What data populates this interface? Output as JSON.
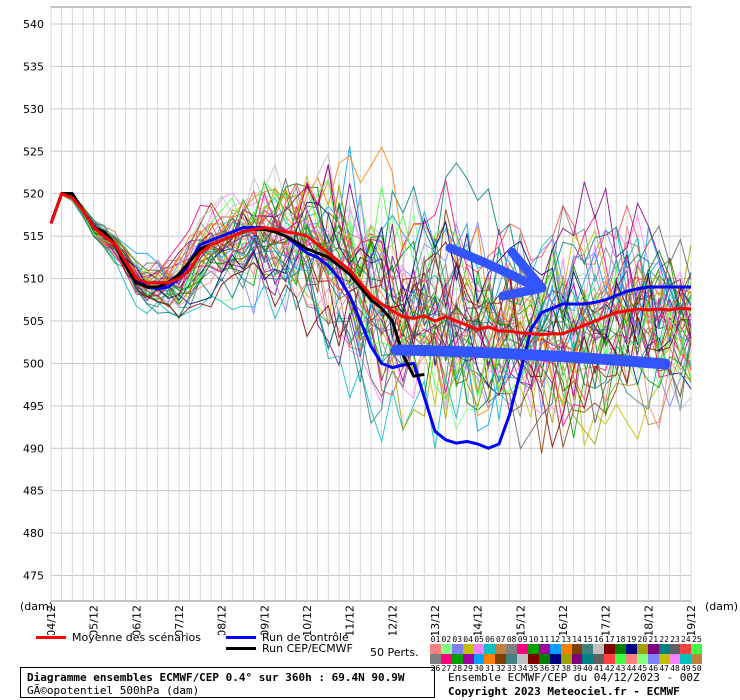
{
  "chart_data": {
    "type": "line",
    "ylabel_unit": "(dam)",
    "xlabel_unit": "(dam)",
    "ylim": [
      472,
      542
    ],
    "yticks": [
      475,
      480,
      485,
      490,
      495,
      500,
      505,
      510,
      515,
      520,
      525,
      530,
      535,
      540
    ],
    "xticks": [
      "04/12",
      "05/12",
      "06/12",
      "07/12",
      "08/12",
      "09/12",
      "10/12",
      "11/12",
      "12/12",
      "13/12",
      "14/12",
      "15/12",
      "16/12",
      "17/12",
      "18/12",
      "19/12"
    ],
    "grid": true,
    "x_hours_step": 6,
    "mean": {
      "name": "Moyenne des scénarios",
      "color": "#ff0000",
      "values": [
        516.5,
        520,
        519.5,
        518,
        516,
        515,
        514,
        512,
        510,
        509.5,
        509.5,
        509.5,
        510,
        511,
        513,
        514,
        514.5,
        515,
        515.5,
        515.8,
        516,
        515.8,
        515.5,
        515.3,
        515,
        514,
        513,
        512,
        511,
        509.5,
        508,
        507,
        506.2,
        505.5,
        505.3,
        505.6,
        505,
        505.5,
        505,
        504.5,
        504,
        504.3,
        503.8,
        503.8,
        503.6,
        503.5,
        503.4,
        503.5,
        503.5,
        504,
        504.5,
        505,
        505.5,
        506,
        506.2,
        506.4,
        506.3,
        506.4,
        506.3,
        506.5,
        506.4
      ]
    },
    "control": {
      "name": "Run de contrôle",
      "color": "#0000ff",
      "values": [
        516.5,
        520,
        520,
        518,
        516,
        515.5,
        514,
        512,
        510,
        509,
        508.8,
        509,
        510,
        512,
        514,
        514.5,
        515,
        515.5,
        516,
        516,
        516,
        515.5,
        515,
        514,
        513,
        512.5,
        511.5,
        510,
        508,
        505,
        502,
        500,
        499.5,
        499.8,
        500,
        496,
        492,
        491,
        490.6,
        490.8,
        490.5,
        490,
        490.5,
        494,
        499,
        504,
        506,
        506.5,
        507,
        507,
        507,
        507.2,
        507.5,
        508,
        508.5,
        508.8,
        509,
        509,
        509,
        509,
        509
      ]
    },
    "cep": {
      "name": "Run CEP/ECMWF",
      "color": "#000000",
      "values": [
        516.5,
        520,
        520,
        518,
        516,
        515.5,
        514,
        511.5,
        509.5,
        509,
        509,
        509.5,
        510.5,
        512,
        513.5,
        514,
        514.5,
        515,
        515.5,
        515.8,
        515.8,
        515.5,
        515,
        514.3,
        513.5,
        513,
        512.5,
        511.5,
        510.5,
        509,
        507.5,
        506.5,
        505,
        501,
        498.5,
        498.7
      ]
    },
    "ensemble_members": 50,
    "perturbations_label": "50 Perts.",
    "member_numbers_row1": [
      "01",
      "02",
      "03",
      "04",
      "05",
      "06",
      "07",
      "08",
      "09",
      "10",
      "11",
      "12",
      "13",
      "14",
      "15",
      "16",
      "17",
      "18",
      "19",
      "20",
      "21",
      "22",
      "23",
      "24",
      "25"
    ],
    "member_numbers_row2": [
      "26",
      "27",
      "28",
      "29",
      "30",
      "31",
      "32",
      "33",
      "34",
      "35",
      "36",
      "37",
      "38",
      "39",
      "40",
      "41",
      "42",
      "43",
      "44",
      "45",
      "46",
      "47",
      "48",
      "49",
      "50"
    ]
  },
  "legend": {
    "mean_label": "Moyenne des scénarios",
    "control_label": "Run de contrôle",
    "cep_label": "Run CEP/ECMWF"
  },
  "footer": {
    "title_line": "Diagramme ensembles ECMWF/CEP 0.4° sur 360h : 69.4N 90.9W",
    "subtitle_line": "GÃ©opotentiel 500hPa (dam)",
    "run_line": "Ensemble ECMWF/CEP du 04/12/2023 - 00Z",
    "copyright_line": "Copyright 2023 Meteociel.fr - ECMWF"
  },
  "annotations": {
    "arrow_color": "#3355ff",
    "line_color": "#3355ff"
  }
}
